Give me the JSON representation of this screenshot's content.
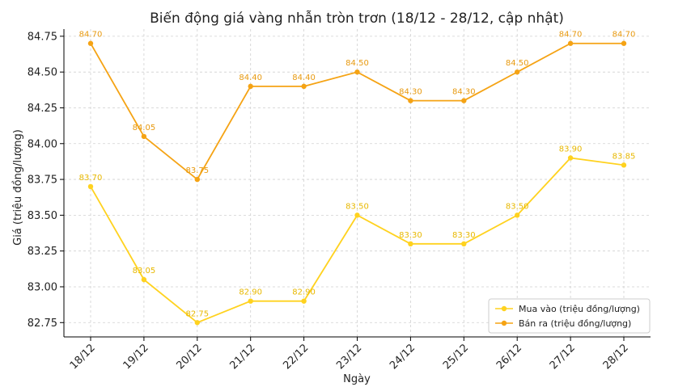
{
  "chart_data": {
    "type": "line",
    "title": "Biến động giá vàng nhẫn tròn trơn (18/12 - 28/12, cập nhật)",
    "xlabel": "Ngày",
    "ylabel": "Giá (triệu đồng/lượng)",
    "categories": [
      "18/12",
      "19/12",
      "20/12",
      "21/12",
      "22/12",
      "23/12",
      "24/12",
      "25/12",
      "26/12",
      "27/12",
      "28/12"
    ],
    "y_ticks": [
      "82.75",
      "83.00",
      "83.25",
      "83.50",
      "83.75",
      "84.00",
      "84.25",
      "84.50",
      "84.75"
    ],
    "ylim": [
      82.65,
      84.8
    ],
    "grid": true,
    "legend_position": "lower-right",
    "series": [
      {
        "name": "Mua vào (triệu đồng/lượng)",
        "color": "#FFD21F",
        "label_color": "#E8B800",
        "values": [
          83.7,
          83.05,
          82.75,
          82.9,
          82.9,
          83.5,
          83.3,
          83.3,
          83.5,
          83.9,
          83.85
        ],
        "labels": [
          "83.70",
          "83.05",
          "82.75",
          "82.90",
          "82.90",
          "83.50",
          "83.30",
          "83.30",
          "83.50",
          "83.90",
          "83.85"
        ]
      },
      {
        "name": "Bán ra (triệu đồng/lượng)",
        "color": "#F5A314",
        "label_color": "#E89A10",
        "values": [
          84.7,
          84.05,
          83.75,
          84.4,
          84.4,
          84.5,
          84.3,
          84.3,
          84.5,
          84.7,
          84.7
        ],
        "labels": [
          "84.70",
          "84.05",
          "83.75",
          "84.40",
          "84.40",
          "84.50",
          "84.30",
          "84.30",
          "84.50",
          "84.70",
          "84.70"
        ]
      }
    ]
  }
}
